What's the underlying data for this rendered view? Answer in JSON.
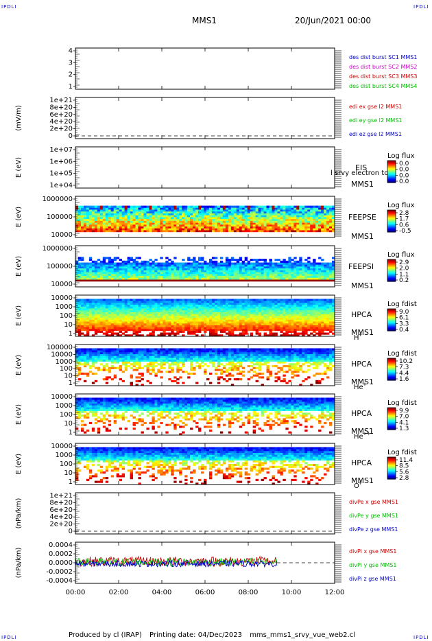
{
  "header": {
    "corner_label": "IPDLI",
    "mission": "MMS1",
    "datetime": "20/Jun/2021 00:00"
  },
  "footer": {
    "produced_by": "Produced by cl (IRAP)",
    "printing_date": "Printing date: 04/Dec/2023",
    "filename": "mms_mms1_srvy_vue_web2.cl"
  },
  "chart_data": {
    "type": "heatmap",
    "x": {
      "ticks": [
        "00:00",
        "02:00",
        "04:00",
        "06:00",
        "08:00",
        "10:00",
        "12:00"
      ],
      "range_hours": [
        0,
        12
      ],
      "data_end_hour": 9.33
    },
    "panels": [
      {
        "id": "burst",
        "kind": "legend_only",
        "ylabel": "",
        "yticks": [
          "1",
          "2",
          "3",
          "4"
        ],
        "legend": [
          {
            "text": "des dist burst SC1 MMS1",
            "color": "#0000cc"
          },
          {
            "text": "des dist burst SC2 MMS2",
            "color": "#cc00cc"
          },
          {
            "text": "des dist burst SC3 MMS3",
            "color": "#cc0000"
          },
          {
            "text": "des dist burst SC4 MMS4",
            "color": "#00bb00"
          }
        ]
      },
      {
        "id": "edi",
        "kind": "line_empty",
        "ylabel": "(mV/m)",
        "yticks": [
          "0",
          "2e+20",
          "4e+20",
          "6e+20",
          "8e+20",
          "1e+21"
        ],
        "legend": [
          {
            "text": "edi ex gse l2 MMS1",
            "color": "#cc0000"
          },
          {
            "text": "edi ey gse l2 MMS1",
            "color": "#00bb00"
          },
          {
            "text": "edi ez gse l2 MMS1",
            "color": "#0000cc"
          }
        ]
      },
      {
        "id": "eis",
        "kind": "spectrogram_empty",
        "ylabel": "E (eV)",
        "yticks": [
          "1e+04",
          "1e+05",
          "1e+06",
          "1e+07"
        ],
        "instrument": [
          "EIS",
          "MMS1"
        ],
        "overlay_text": "l srvy electron to",
        "colorbar_title": "Log flux",
        "colorbar_ticks": [
          "0.0",
          "0.0",
          "0.0",
          "0.0"
        ]
      },
      {
        "id": "feepse",
        "kind": "spectrogram",
        "ylabel": "E (eV)",
        "yticks": [
          "10000",
          "100000",
          "1000000"
        ],
        "instrument": [
          "FEEPSE",
          "MMS1"
        ],
        "colorbar_title": "Log flux",
        "colorbar_ticks": [
          "2.8",
          "1.7",
          "0.6",
          "-0.5"
        ]
      },
      {
        "id": "feepsi",
        "kind": "spectrogram",
        "ylabel": "E (eV)",
        "yticks": [
          "10000",
          "100000",
          "1000000"
        ],
        "instrument": [
          "FEEPSI",
          "MMS1"
        ],
        "colorbar_title": "Log flux",
        "colorbar_ticks": [
          "2.9",
          "2.0",
          "1.1",
          "0.2"
        ]
      },
      {
        "id": "hpca_h",
        "kind": "spectrogram",
        "ylabel": "E (eV)",
        "yticks": [
          "1",
          "10",
          "100",
          "1000",
          "10000"
        ],
        "instrument": [
          "HPCA",
          "MMS1"
        ],
        "species": "H",
        "charge": "+",
        "colorbar_title": "Log fdist",
        "colorbar_ticks": [
          "9.0",
          "6.1",
          "3.3",
          "0.4"
        ]
      },
      {
        "id": "hpca_he1",
        "kind": "spectrogram",
        "ylabel": "E (eV)",
        "yticks": [
          "1",
          "10",
          "100",
          "1000",
          "10000",
          "100000"
        ],
        "instrument": [
          "HPCA",
          "MMS1"
        ],
        "species": "He",
        "charge": "+",
        "colorbar_title": "Log fdist",
        "colorbar_ticks": [
          "10.2",
          "7.3",
          "4.4",
          "1.6"
        ]
      },
      {
        "id": "hpca_he2",
        "kind": "spectrogram",
        "ylabel": "E (eV)",
        "yticks": [
          "1",
          "10",
          "100",
          "1000",
          "10000"
        ],
        "instrument": [
          "HPCA",
          "MMS1"
        ],
        "species": "He",
        "charge": "++",
        "colorbar_title": "Log fdist",
        "colorbar_ticks": [
          "9.9",
          "7.0",
          "4.1",
          "1.3"
        ]
      },
      {
        "id": "hpca_o",
        "kind": "spectrogram",
        "ylabel": "E (eV)",
        "yticks": [
          "1",
          "10",
          "100",
          "1000",
          "10000"
        ],
        "instrument": [
          "HPCA",
          "MMS1"
        ],
        "species": "O",
        "charge": "+",
        "colorbar_title": "Log fdist",
        "colorbar_ticks": [
          "11.4",
          "8.5",
          "5.6",
          "2.8"
        ]
      },
      {
        "id": "divpe",
        "kind": "line_empty",
        "ylabel": "(nPa/km)",
        "yticks": [
          "0",
          "2e+20",
          "4e+20",
          "6e+20",
          "8e+20",
          "1e+21"
        ],
        "legend": [
          {
            "text": "divPe x gse MMS1",
            "color": "#cc0000"
          },
          {
            "text": "divPe y gse MMS1",
            "color": "#00bb00"
          },
          {
            "text": "divPe z gse MMS1",
            "color": "#0000cc"
          }
        ]
      },
      {
        "id": "divpi",
        "kind": "line_noise",
        "ylabel": "(nPa/km)",
        "yticks": [
          "-0.0004",
          "-0.0002",
          "0.0000",
          "0.0002",
          "0.0004"
        ],
        "yrange": [
          -0.0004,
          0.0004
        ],
        "legend": [
          {
            "text": "divPi x gse MMS1",
            "color": "#cc0000"
          },
          {
            "text": "divPi y gse MMS1",
            "color": "#00bb00"
          },
          {
            "text": "divPi z gse MMS1",
            "color": "#0000cc"
          }
        ]
      }
    ]
  }
}
